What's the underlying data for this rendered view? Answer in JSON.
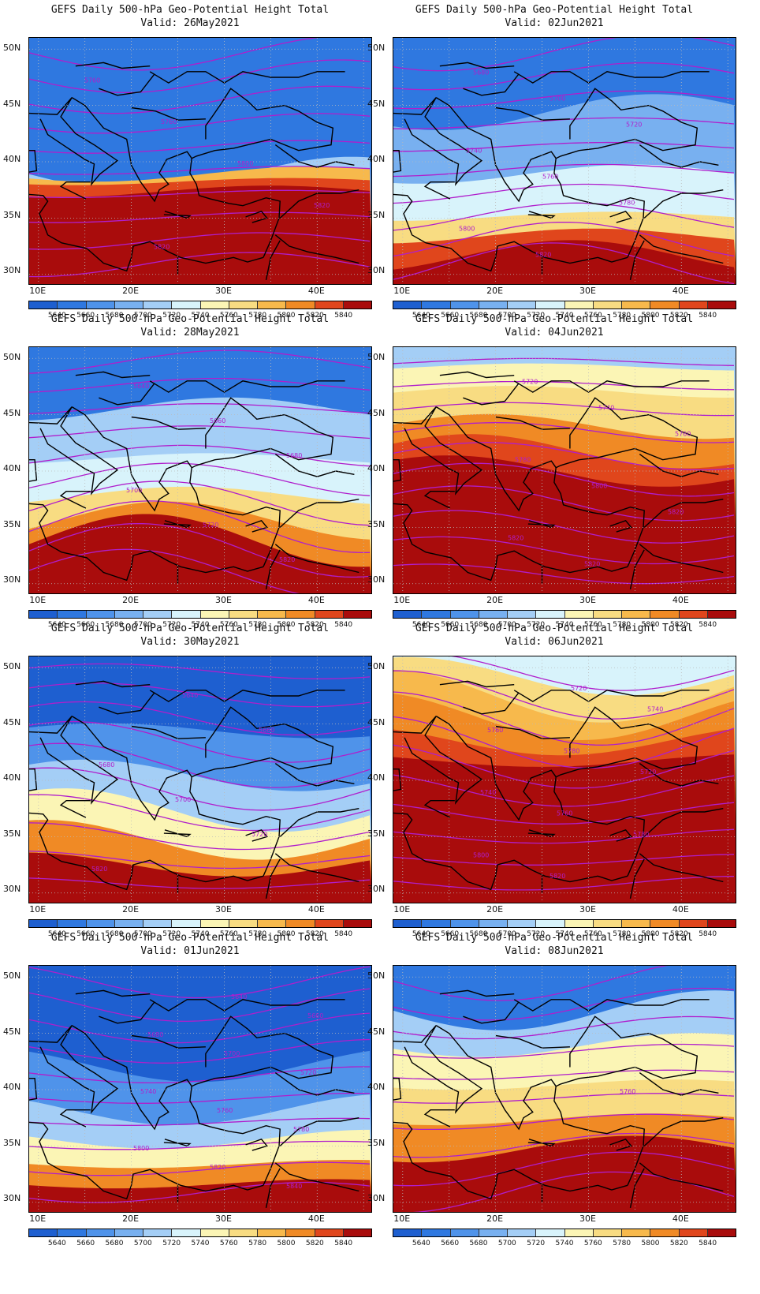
{
  "palette": [
    "#1e5fd0",
    "#2f78e0",
    "#4f93ea",
    "#78b0f0",
    "#a4cef6",
    "#d8f3fb",
    "#fbf5b5",
    "#f8dc82",
    "#f7b94c",
    "#f08a25",
    "#e0461c",
    "#a90c0c"
  ],
  "contour_color": "#b01ecc",
  "coast_color": "#000000",
  "y_ticks": [
    "50N",
    "45N",
    "40N",
    "35N",
    "30N"
  ],
  "x_ticks": [
    "10E",
    "20E",
    "30E",
    "40E"
  ],
  "colorbar_labels": [
    "5640",
    "5660",
    "5680",
    "5700",
    "5720",
    "5740",
    "5760",
    "5780",
    "5800",
    "5820",
    "5840"
  ],
  "panels": [
    {
      "title": "GEFS Daily 500-hPa Geo-Potential Height Total",
      "valid": "Valid: 26May2021",
      "contour_labels": [
        "5760",
        "5760",
        "5800",
        "5820",
        "5820"
      ],
      "bands": [
        1,
        4,
        6,
        8,
        10,
        11
      ],
      "mid": [
        0.55,
        0.62,
        0.55,
        0.58,
        0.62
      ]
    },
    {
      "title": "GEFS Daily 500-hPa Geo-Potential Height Total",
      "valid": "Valid: 02Jun2021",
      "contour_labels": [
        "5680",
        "5700",
        "5720",
        "5740",
        "5760",
        "5780",
        "5800",
        "5820"
      ],
      "bands": [
        1,
        3,
        5,
        7,
        10,
        11
      ],
      "mid": [
        0.3,
        0.55,
        0.72,
        0.8,
        0.88
      ]
    },
    {
      "title": "GEFS Daily 500-hPa Geo-Potential Height Total",
      "valid": "Valid: 28May2021",
      "contour_labels": [
        "5640",
        "5660",
        "5680",
        "5700",
        "5720",
        "5820"
      ],
      "bands": [
        1,
        4,
        5,
        7,
        9,
        11
      ],
      "mid": [
        0.25,
        0.45,
        0.6,
        0.7,
        0.78
      ]
    },
    {
      "title": "GEFS Daily 500-hPa Geo-Potential Height Total",
      "valid": "Valid: 04Jun2021",
      "contour_labels": [
        "5720",
        "5740",
        "5760",
        "5780",
        "5800",
        "5820",
        "5820",
        "5820"
      ],
      "bands": [
        4,
        6,
        7,
        9,
        10,
        11
      ],
      "mid": [
        0.08,
        0.18,
        0.32,
        0.42,
        0.5
      ]
    },
    {
      "title": "GEFS Daily 500-hPa Geo-Potential Height Total",
      "valid": "Valid: 30May2021",
      "contour_labels": [
        "5640",
        "5660",
        "5680",
        "5700",
        "5720",
        "5820"
      ],
      "bands": [
        0,
        2,
        4,
        6,
        9,
        11
      ],
      "mid": [
        0.3,
        0.48,
        0.62,
        0.74,
        0.84
      ]
    },
    {
      "title": "GEFS Daily 500-hPa Geo-Potential Height Total",
      "valid": "Valid: 06Jun2021",
      "contour_labels": [
        "5720",
        "5740",
        "5760",
        "5780",
        "5720",
        "5740",
        "5760",
        "5780",
        "5800",
        "5820"
      ],
      "bands": [
        5,
        7,
        8,
        9,
        10,
        11
      ],
      "mid": [
        0.08,
        0.16,
        0.24,
        0.34,
        0.42
      ]
    },
    {
      "title": "GEFS Daily 500-hPa Geo-Potential Height Total",
      "valid": "Valid: 01Jun2021",
      "contour_labels": [
        "5640",
        "5660",
        "5680",
        "5700",
        "5720",
        "5740",
        "5760",
        "5780",
        "5800",
        "5820",
        "5840"
      ],
      "bands": [
        0,
        2,
        4,
        6,
        9,
        11
      ],
      "mid": [
        0.4,
        0.58,
        0.7,
        0.8,
        0.88
      ]
    },
    {
      "title": "GEFS Daily 500-hPa Geo-Potential Height Total",
      "valid": "Valid: 08Jun2021",
      "contour_labels": [
        "5760"
      ],
      "bands": [
        1,
        4,
        6,
        7,
        9,
        11
      ],
      "mid": [
        0.18,
        0.32,
        0.48,
        0.62,
        0.74
      ]
    }
  ]
}
